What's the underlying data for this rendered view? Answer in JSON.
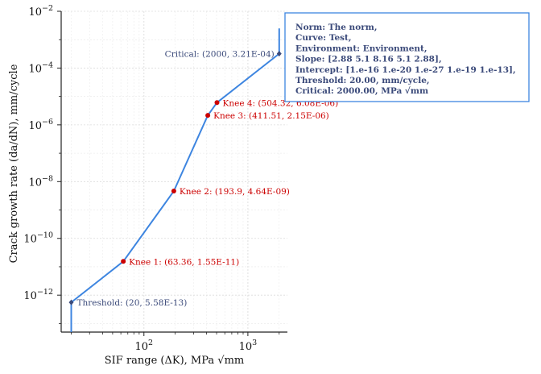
{
  "chart_data": {
    "type": "line",
    "xlabel": "SIF range (ΔK), MPa √mm",
    "ylabel": "Crack growth rate (da/dN), mm/cycle",
    "xscale": "log",
    "yscale": "log",
    "xlim": [
      16,
      2400
    ],
    "ylim": [
      5e-14,
      0.01
    ],
    "x_ticks": [
      {
        "value": 100,
        "base": "10",
        "exp": "2"
      },
      {
        "value": 1000,
        "base": "10",
        "exp": "3"
      }
    ],
    "y_ticks": [
      {
        "value": 1e-12,
        "base": "10",
        "exp": "−12"
      },
      {
        "value": 1e-10,
        "base": "10",
        "exp": "−10"
      },
      {
        "value": 1e-08,
        "base": "10",
        "exp": "−8"
      },
      {
        "value": 1e-06,
        "base": "10",
        "exp": "−6"
      },
      {
        "value": 0.0001,
        "base": "10",
        "exp": "−4"
      },
      {
        "value": 0.01,
        "base": "10",
        "exp": "−2"
      }
    ],
    "grid": true,
    "series": [
      {
        "color": "#3d85e0",
        "x": [
          20,
          20,
          63.36,
          193.9,
          411.51,
          504.32,
          2000,
          2000
        ],
        "y": [
          5e-14,
          5.58e-13,
          1.55e-11,
          4.64e-09,
          2.15e-06,
          6.08e-06,
          0.000321,
          0.0025
        ]
      }
    ],
    "annotations": [
      {
        "text": "Threshold: (20, 5.58E-13)",
        "x": 20,
        "y": 5.58e-13,
        "color": "#3b4a7a",
        "marker": "diamond"
      },
      {
        "text": "Knee 1: (63.36, 1.55E-11)",
        "x": 63.36,
        "y": 1.55e-11,
        "color": "#cc0000",
        "marker": "circle"
      },
      {
        "text": "Knee 2: (193.9, 4.64E-09)",
        "x": 193.9,
        "y": 4.64e-09,
        "color": "#cc0000",
        "marker": "circle"
      },
      {
        "text": "Knee 3: (411.51, 2.15E-06)",
        "x": 411.51,
        "y": 2.15e-06,
        "color": "#cc0000",
        "marker": "circle"
      },
      {
        "text": "Knee 4: (504.32, 6.08E-06)",
        "x": 504.32,
        "y": 6.08e-06,
        "color": "#cc0000",
        "marker": "circle"
      },
      {
        "text": "Critical: (2000, 3.21E-04)",
        "x": 2000,
        "y": 0.000321,
        "color": "#3b4a7a",
        "marker": "diamond",
        "side": "left"
      }
    ],
    "legend": {
      "placement": "top-right",
      "border_color": "#3d85e0",
      "text_color": "#3b4a7a",
      "lines": [
        "Norm: The norm,",
        "Curve: Test,",
        "Environment: Environment,",
        "Slope: [2.88 5.1  8.16 5.1  2.88],",
        "Intercept: [1.e-16 1.e-20 1.e-27 1.e-19 1.e-13],",
        "Threshold: 20.00, mm/cycle,",
        "Critical: 2000.00, MPa √mm"
      ]
    }
  }
}
